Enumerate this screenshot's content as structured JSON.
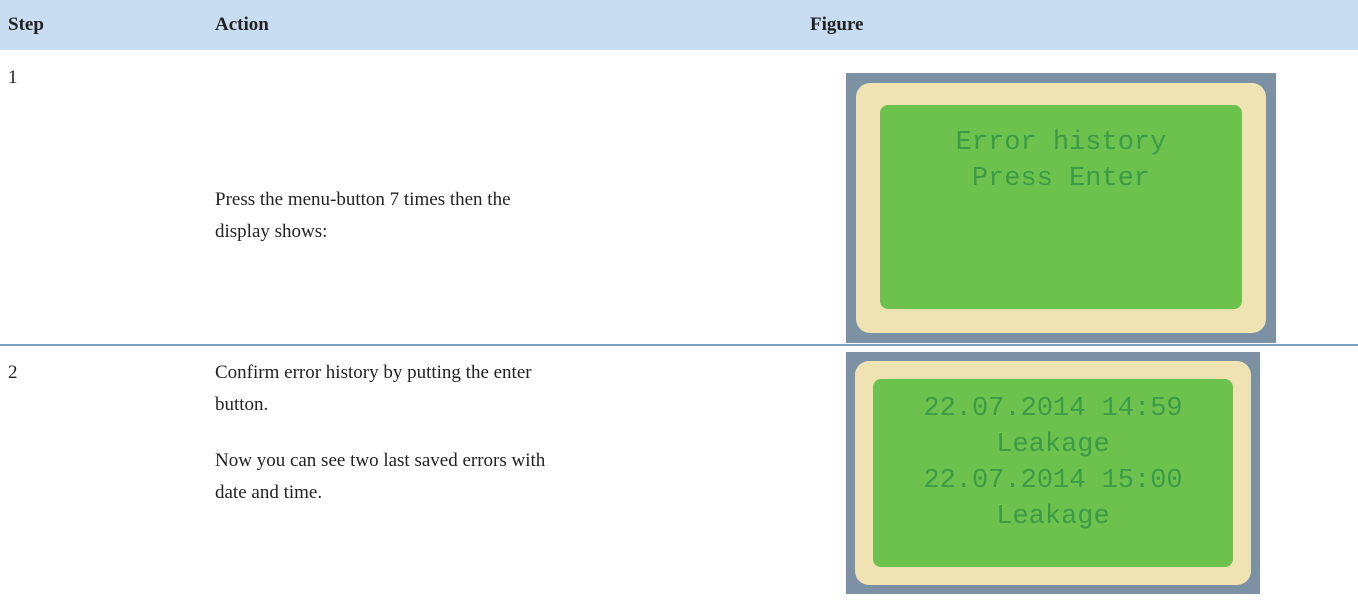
{
  "table": {
    "headers": [
      "Step",
      "Action",
      "Figure"
    ],
    "rows": [
      {
        "step": "1",
        "action": [
          "Press the menu-button 7 times then the display shows:"
        ],
        "figure": [
          "Error history",
          "Press Enter"
        ]
      },
      {
        "step": "2",
        "action": [
          "Confirm error history by putting the enter button.",
          "Now you can see two last saved errors with date and time."
        ],
        "figure": [
          "22.07.2014 14:59",
          "Leakage",
          "22.07.2014 15:00",
          "Leakage"
        ]
      }
    ]
  }
}
